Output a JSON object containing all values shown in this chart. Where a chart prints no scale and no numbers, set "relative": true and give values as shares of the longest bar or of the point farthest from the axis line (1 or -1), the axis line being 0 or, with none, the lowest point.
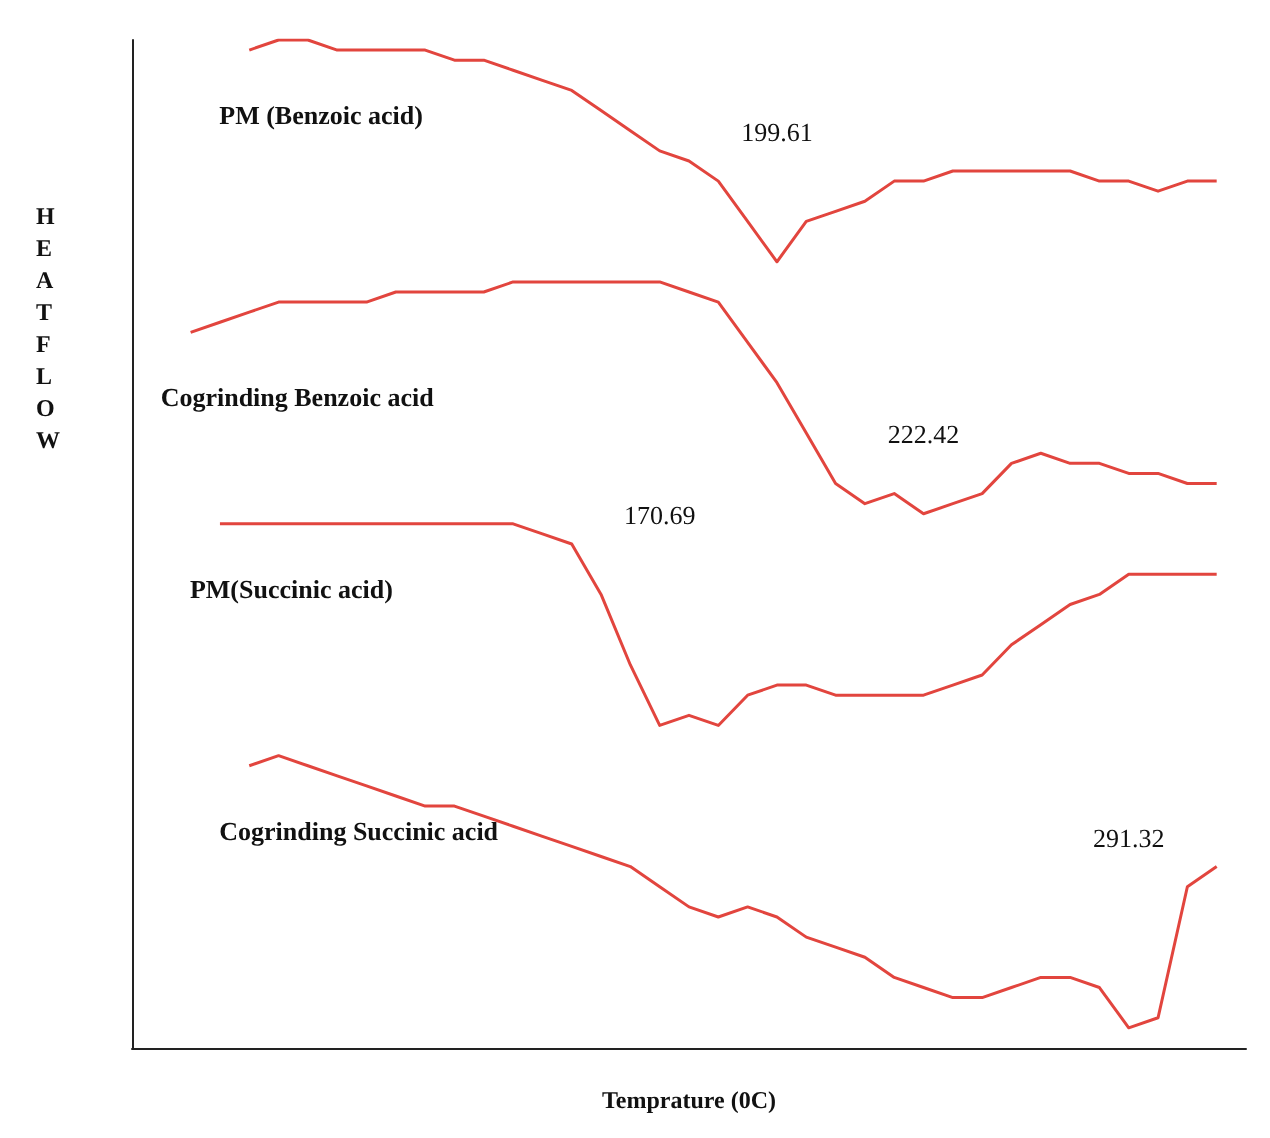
{
  "chart_data": {
    "type": "line",
    "relative": true,
    "xlabel": "Temprature (0C)",
    "ylabel": "HEATFLOW",
    "categories": [
      null,
      null,
      null,
      null,
      null,
      null,
      null,
      null,
      null,
      null,
      null,
      null,
      null,
      null,
      null,
      null,
      null,
      null,
      null,
      null,
      null,
      null,
      null,
      null,
      null,
      null,
      null,
      null,
      null,
      null,
      null,
      null,
      null,
      null,
      null,
      null,
      null,
      null,
      null
    ],
    "series": [
      {
        "name": "PM (Benzoic acid)",
        "color": "#e2453e",
        "values": [
          null,
          null,
          null,
          null,
          0.99,
          1.0,
          1.0,
          0.99,
          0.99,
          0.99,
          0.99,
          0.98,
          0.98,
          0.97,
          0.96,
          0.95,
          0.93,
          0.91,
          0.89,
          0.88,
          0.86,
          0.82,
          0.78,
          0.82,
          0.83,
          0.84,
          0.86,
          0.86,
          0.87,
          0.87,
          0.87,
          0.87,
          0.87,
          0.86,
          0.86,
          0.85,
          0.86,
          0.86,
          null
        ]
      },
      {
        "name": "Cogrinding Benzoic acid",
        "color": "#e2453e",
        "values": [
          null,
          null,
          0.71,
          0.72,
          0.73,
          0.74,
          0.74,
          0.74,
          0.74,
          0.75,
          0.75,
          0.75,
          0.75,
          0.76,
          0.76,
          0.76,
          0.76,
          0.76,
          0.76,
          0.75,
          0.74,
          0.7,
          0.66,
          0.61,
          0.56,
          0.54,
          0.55,
          0.53,
          0.54,
          0.55,
          0.58,
          0.59,
          0.58,
          0.58,
          0.57,
          0.57,
          0.56,
          0.56,
          null
        ]
      },
      {
        "name": "PM(Succinic acid)",
        "color": "#e2453e",
        "values": [
          null,
          null,
          null,
          0.52,
          0.52,
          0.52,
          0.52,
          0.52,
          0.52,
          0.52,
          0.52,
          0.52,
          0.52,
          0.52,
          0.51,
          0.5,
          0.45,
          0.38,
          0.32,
          0.33,
          0.32,
          0.35,
          0.36,
          0.36,
          0.35,
          0.35,
          0.35,
          0.35,
          0.36,
          0.37,
          0.4,
          0.42,
          0.44,
          0.45,
          0.47,
          0.47,
          0.47,
          0.47,
          null
        ]
      },
      {
        "name": "Cogrinding Succinic acid",
        "color": "#e2453e",
        "values": [
          null,
          null,
          null,
          null,
          0.28,
          0.29,
          0.28,
          0.27,
          0.26,
          0.25,
          0.24,
          0.24,
          0.23,
          0.22,
          0.21,
          0.2,
          0.19,
          0.18,
          0.16,
          0.14,
          0.13,
          0.14,
          0.13,
          0.11,
          0.1,
          0.09,
          0.07,
          0.06,
          0.05,
          0.05,
          0.06,
          0.07,
          0.07,
          0.06,
          0.02,
          0.03,
          0.16,
          0.18,
          null
        ]
      }
    ],
    "annotations": [
      "199.61",
      "222.42",
      "170.69",
      "291.32"
    ]
  }
}
